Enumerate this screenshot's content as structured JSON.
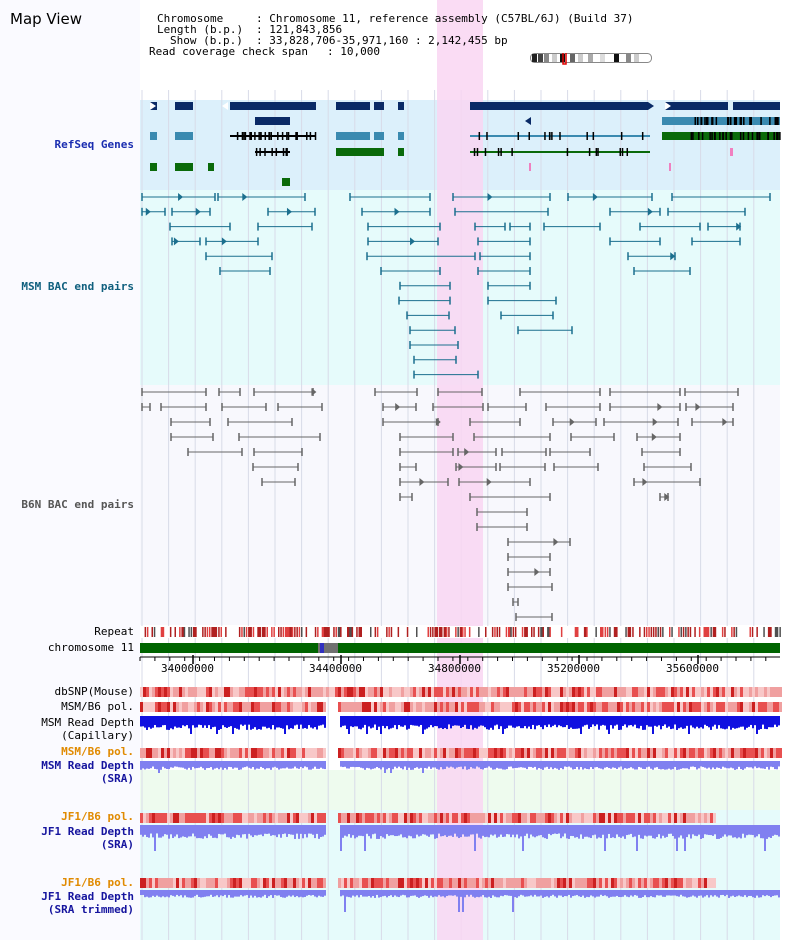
{
  "title": "Map View",
  "header": {
    "l1_label": "Chromosome",
    "l1_value": ": Chromosome 11, reference assembly (C57BL/6J) (Build 37)",
    "l2_label": "Length (b.p.)",
    "l2_value": ": 121,843,856",
    "l3_label": "Show (b.p.)",
    "l3_value": ": 33,828,706-35,971,160 : 2,142,455 bp",
    "l4_label": "Read coverage check span",
    "l4_value": ": 10,000"
  },
  "tracks": {
    "refseq": "RefSeq Genes",
    "msm_bac": "MSM BAC end pairs",
    "b6n_bac": "B6N BAC end pairs",
    "repeat": "Repeat",
    "chromosome": "chromosome 11",
    "dbsnp": "dbSNP(Mouse)",
    "msm_b6_pol_1": "MSM/B6 pol.",
    "msm_depth_cap_1": "MSM Read Depth",
    "msm_depth_cap_2": "(Capillary)",
    "msm_b6_pol_2": "MSM/B6 pol.",
    "msm_depth_sra_1": "MSM Read Depth",
    "msm_depth_sra_2": "(SRA)",
    "jf1_pol_1": "JF1/B6 pol.",
    "jf1_depth_1": "JF1 Read Depth",
    "jf1_depth_2": "(SRA)",
    "jf1_pol_2": "JF1/B6 pol.",
    "jf1_trim_1": "JF1 Read Depth",
    "jf1_trim_2": "(SRA trimmed)"
  },
  "axis": {
    "ticks": [
      "34000000",
      "34400000",
      "34800000",
      "35200000",
      "35600000"
    ]
  },
  "colors": {
    "refseq_bg": "#dcf0fb",
    "bac_bg": "#e6fbfb",
    "highlight": "#f9d6f2",
    "gene_navy": "#0a2a66",
    "gene_teal": "#3a8ab0",
    "gene_green": "#0a6a0a",
    "msm_bac": "#1b6f8e",
    "b6n_bac": "#666666",
    "chrom_green": "#006400",
    "depth_blue": "#1010e0",
    "depth_lilac": "#8080f0",
    "snp_red": "#e85050"
  }
}
